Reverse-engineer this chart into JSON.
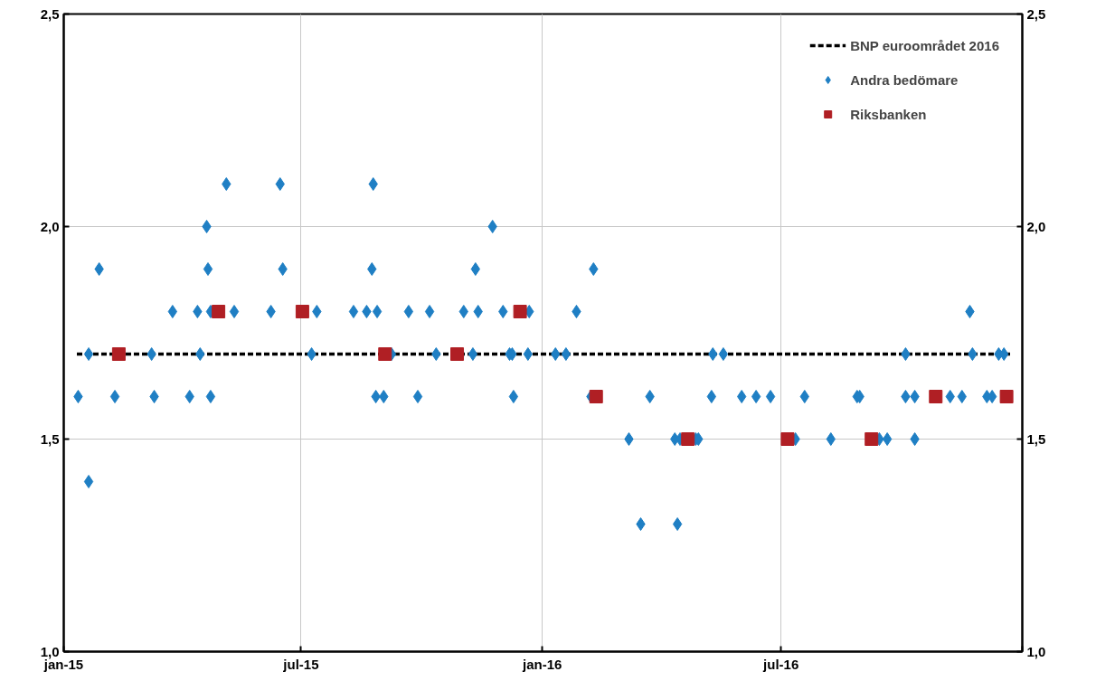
{
  "chart_data": {
    "type": "scatter",
    "xlim": [
      "2015-01-01",
      "2017-01-01"
    ],
    "xticks": [
      {
        "value": "2015-01-01",
        "label": "jan-15"
      },
      {
        "value": "2015-07-01",
        "label": "jul-15"
      },
      {
        "value": "2016-01-01",
        "label": "jan-16"
      },
      {
        "value": "2016-07-01",
        "label": "jul-16"
      },
      {
        "value": "2017-01-01",
        "label": null
      }
    ],
    "ylim": [
      1.0,
      2.5
    ],
    "yticks": [
      {
        "value": 1.0,
        "label": "1,0"
      },
      {
        "value": 1.5,
        "label": "1,5"
      },
      {
        "value": 2.0,
        "label": "2,0"
      },
      {
        "value": 2.5,
        "label": "2,5"
      }
    ],
    "y2lim": [
      1.0,
      2.5
    ],
    "y2ticks": [
      {
        "value": 1.0,
        "label": "1,0"
      },
      {
        "value": 1.5,
        "label": "1,5"
      },
      {
        "value": 2.0,
        "label": "2,0"
      },
      {
        "value": 2.5,
        "label": "2,5"
      }
    ],
    "grid": true,
    "legend": "top right",
    "series": [
      {
        "name": "BNP euroområdet 2016",
        "type": "line",
        "line_style": "dashed",
        "marker": "none",
        "color": "#000000",
        "x": [
          "2015-01-11",
          "2016-12-24"
        ],
        "values": [
          1.7,
          1.7
        ]
      },
      {
        "name": "Andra bedömare",
        "marker": "diamond",
        "color": "#1f7fc4",
        "x": [
          "2015-01-12",
          "2015-01-20",
          "2015-01-20",
          "2015-01-28",
          "2015-02-09",
          "2015-03-09",
          "2015-03-11",
          "2015-03-25",
          "2015-04-07",
          "2015-04-13",
          "2015-04-15",
          "2015-04-20",
          "2015-04-21",
          "2015-04-23",
          "2015-04-23",
          "2015-05-05",
          "2015-05-11",
          "2015-06-08",
          "2015-06-15",
          "2015-06-17",
          "2015-07-09",
          "2015-07-13",
          "2015-08-10",
          "2015-08-20",
          "2015-08-24",
          "2015-08-25",
          "2015-08-27",
          "2015-08-28",
          "2015-09-02",
          "2015-09-08",
          "2015-09-21",
          "2015-09-28",
          "2015-10-07",
          "2015-10-12",
          "2015-11-02",
          "2015-11-09",
          "2015-11-11",
          "2015-11-13",
          "2015-11-24",
          "2015-12-02",
          "2015-12-07",
          "2015-12-09",
          "2015-12-10",
          "2015-12-21",
          "2015-12-22",
          "2016-01-11",
          "2016-01-19",
          "2016-01-27",
          "2016-02-07",
          "2016-02-09",
          "2016-03-07",
          "2016-03-16",
          "2016-03-23",
          "2016-04-11",
          "2016-04-13",
          "2016-04-15",
          "2016-04-27",
          "2016-04-29",
          "2016-05-09",
          "2016-05-10",
          "2016-05-18",
          "2016-06-01",
          "2016-06-12",
          "2016-06-23",
          "2016-07-12",
          "2016-07-19",
          "2016-08-08",
          "2016-08-28",
          "2016-08-30",
          "2016-09-14",
          "2016-09-20",
          "2016-10-04",
          "2016-10-04",
          "2016-10-11",
          "2016-10-11",
          "2016-11-07",
          "2016-11-16",
          "2016-11-22",
          "2016-11-24",
          "2016-12-05",
          "2016-12-09",
          "2016-12-14",
          "2016-12-18"
        ],
        "values": [
          1.6,
          1.7,
          1.4,
          1.9,
          1.6,
          1.7,
          1.6,
          1.8,
          1.6,
          1.8,
          1.7,
          2.0,
          1.9,
          1.6,
          1.8,
          2.1,
          1.8,
          1.8,
          2.1,
          1.9,
          1.7,
          1.8,
          1.8,
          1.8,
          1.9,
          2.1,
          1.6,
          1.8,
          1.6,
          1.7,
          1.8,
          1.6,
          1.8,
          1.7,
          1.8,
          1.7,
          1.9,
          1.8,
          2.0,
          1.8,
          1.7,
          1.7,
          1.6,
          1.7,
          1.8,
          1.7,
          1.7,
          1.8,
          1.6,
          1.9,
          1.5,
          1.3,
          1.6,
          1.5,
          1.3,
          1.5,
          1.5,
          1.5,
          1.6,
          1.7,
          1.7,
          1.6,
          1.6,
          1.6,
          1.5,
          1.6,
          1.5,
          1.6,
          1.6,
          1.5,
          1.5,
          1.7,
          1.6,
          1.6,
          1.5,
          1.6,
          1.6,
          1.8,
          1.7,
          1.6,
          1.6,
          1.7,
          1.7
        ]
      },
      {
        "name": "Riksbanken",
        "marker": "square",
        "color": "#b01f24",
        "x": [
          "2015-02-12",
          "2015-04-29",
          "2015-07-02",
          "2015-09-03",
          "2015-10-28",
          "2015-12-15",
          "2016-02-11",
          "2016-04-21",
          "2016-07-06",
          "2016-09-08",
          "2016-10-27",
          "2016-12-20"
        ],
        "values": [
          1.7,
          1.8,
          1.8,
          1.7,
          1.7,
          1.8,
          1.6,
          1.5,
          1.5,
          1.5,
          1.6,
          1.6
        ]
      }
    ]
  }
}
